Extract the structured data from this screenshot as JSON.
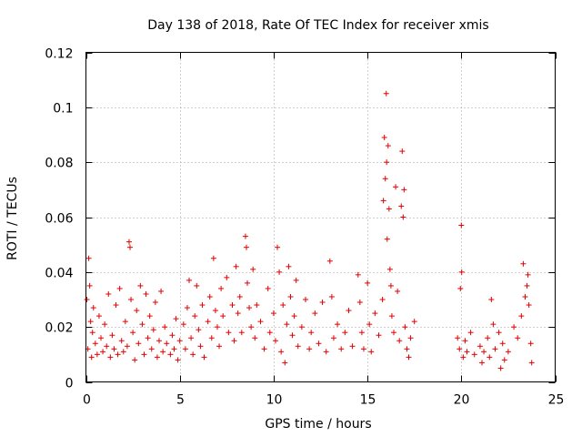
{
  "chart_data": {
    "type": "scatter",
    "title": "Day 138 of 2018, Rate Of TEC Index for receiver xmis",
    "xlabel": "GPS time / hours",
    "ylabel": "ROTI / TECUs",
    "xlim": [
      0,
      25
    ],
    "ylim": [
      0,
      0.12
    ],
    "x_ticks": [
      0,
      5,
      10,
      15,
      20,
      25
    ],
    "x_tick_labels": [
      "0",
      "5",
      "10",
      "15",
      "20",
      "25"
    ],
    "y_ticks": [
      0,
      0.02,
      0.04,
      0.06,
      0.08,
      0.1,
      0.12
    ],
    "y_tick_labels": [
      "0",
      "0.02",
      "0.04",
      "0.06",
      "0.08",
      "0.1",
      "0.12"
    ],
    "grid": true,
    "marker": "+",
    "color": "#e00000",
    "series": [
      {
        "name": "ROTI",
        "points": [
          [
            0.05,
            0.03
          ],
          [
            0.1,
            0.012
          ],
          [
            0.15,
            0.045
          ],
          [
            0.2,
            0.035
          ],
          [
            0.25,
            0.022
          ],
          [
            0.3,
            0.009
          ],
          [
            0.35,
            0.018
          ],
          [
            0.4,
            0.027
          ],
          [
            0.5,
            0.014
          ],
          [
            0.6,
            0.01
          ],
          [
            0.7,
            0.024
          ],
          [
            0.8,
            0.016
          ],
          [
            0.9,
            0.011
          ],
          [
            1.0,
            0.021
          ],
          [
            1.1,
            0.013
          ],
          [
            1.2,
            0.032
          ],
          [
            1.3,
            0.009
          ],
          [
            1.4,
            0.017
          ],
          [
            1.5,
            0.012
          ],
          [
            1.6,
            0.028
          ],
          [
            1.7,
            0.01
          ],
          [
            1.8,
            0.034
          ],
          [
            1.9,
            0.015
          ],
          [
            2.0,
            0.011
          ],
          [
            2.1,
            0.022
          ],
          [
            2.2,
            0.013
          ],
          [
            2.3,
            0.051
          ],
          [
            2.35,
            0.049
          ],
          [
            2.4,
            0.03
          ],
          [
            2.5,
            0.018
          ],
          [
            2.6,
            0.008
          ],
          [
            2.7,
            0.026
          ],
          [
            2.8,
            0.014
          ],
          [
            2.9,
            0.035
          ],
          [
            3.0,
            0.021
          ],
          [
            3.1,
            0.01
          ],
          [
            3.2,
            0.032
          ],
          [
            3.3,
            0.016
          ],
          [
            3.4,
            0.024
          ],
          [
            3.5,
            0.012
          ],
          [
            3.6,
            0.019
          ],
          [
            3.7,
            0.029
          ],
          [
            3.8,
            0.009
          ],
          [
            3.9,
            0.015
          ],
          [
            4.0,
            0.033
          ],
          [
            4.1,
            0.011
          ],
          [
            4.2,
            0.02
          ],
          [
            4.3,
            0.014
          ],
          [
            4.5,
            0.01
          ],
          [
            4.6,
            0.017
          ],
          [
            4.7,
            0.012
          ],
          [
            4.8,
            0.023
          ],
          [
            4.9,
            0.008
          ],
          [
            5.0,
            0.015
          ],
          [
            5.2,
            0.021
          ],
          [
            5.3,
            0.012
          ],
          [
            5.4,
            0.027
          ],
          [
            5.5,
            0.037
          ],
          [
            5.6,
            0.016
          ],
          [
            5.7,
            0.01
          ],
          [
            5.8,
            0.024
          ],
          [
            5.9,
            0.035
          ],
          [
            6.0,
            0.019
          ],
          [
            6.1,
            0.013
          ],
          [
            6.2,
            0.028
          ],
          [
            6.3,
            0.009
          ],
          [
            6.5,
            0.022
          ],
          [
            6.6,
            0.031
          ],
          [
            6.7,
            0.016
          ],
          [
            6.8,
            0.045
          ],
          [
            6.9,
            0.026
          ],
          [
            7.0,
            0.02
          ],
          [
            7.1,
            0.013
          ],
          [
            7.2,
            0.034
          ],
          [
            7.3,
            0.024
          ],
          [
            7.5,
            0.038
          ],
          [
            7.6,
            0.018
          ],
          [
            7.8,
            0.028
          ],
          [
            7.9,
            0.015
          ],
          [
            8.0,
            0.042
          ],
          [
            8.1,
            0.025
          ],
          [
            8.2,
            0.031
          ],
          [
            8.3,
            0.018
          ],
          [
            8.5,
            0.053
          ],
          [
            8.55,
            0.049
          ],
          [
            8.6,
            0.036
          ],
          [
            8.7,
            0.027
          ],
          [
            8.8,
            0.02
          ],
          [
            8.9,
            0.041
          ],
          [
            9.0,
            0.016
          ],
          [
            9.1,
            0.028
          ],
          [
            9.3,
            0.022
          ],
          [
            9.5,
            0.012
          ],
          [
            9.7,
            0.034
          ],
          [
            9.8,
            0.018
          ],
          [
            10.0,
            0.025
          ],
          [
            10.1,
            0.015
          ],
          [
            10.2,
            0.049
          ],
          [
            10.3,
            0.04
          ],
          [
            10.4,
            0.011
          ],
          [
            10.5,
            0.028
          ],
          [
            10.6,
            0.007
          ],
          [
            10.7,
            0.021
          ],
          [
            10.8,
            0.042
          ],
          [
            10.9,
            0.031
          ],
          [
            11.0,
            0.017
          ],
          [
            11.1,
            0.024
          ],
          [
            11.2,
            0.037
          ],
          [
            11.3,
            0.013
          ],
          [
            11.5,
            0.02
          ],
          [
            11.7,
            0.03
          ],
          [
            11.9,
            0.012
          ],
          [
            12.0,
            0.018
          ],
          [
            12.2,
            0.025
          ],
          [
            12.4,
            0.014
          ],
          [
            12.6,
            0.029
          ],
          [
            12.8,
            0.011
          ],
          [
            13.0,
            0.044
          ],
          [
            13.1,
            0.031
          ],
          [
            13.2,
            0.016
          ],
          [
            13.4,
            0.021
          ],
          [
            13.6,
            0.012
          ],
          [
            13.8,
            0.018
          ],
          [
            14.0,
            0.026
          ],
          [
            14.2,
            0.013
          ],
          [
            14.5,
            0.039
          ],
          [
            14.6,
            0.029
          ],
          [
            14.7,
            0.018
          ],
          [
            14.8,
            0.012
          ],
          [
            15.0,
            0.036
          ],
          [
            15.1,
            0.021
          ],
          [
            15.2,
            0.011
          ],
          [
            15.4,
            0.025
          ],
          [
            15.6,
            0.017
          ],
          [
            15.8,
            0.03
          ],
          [
            15.85,
            0.066
          ],
          [
            15.9,
            0.089
          ],
          [
            15.95,
            0.074
          ],
          [
            16.0,
            0.105
          ],
          [
            16.02,
            0.08
          ],
          [
            16.05,
            0.052
          ],
          [
            16.1,
            0.086
          ],
          [
            16.15,
            0.063
          ],
          [
            16.2,
            0.041
          ],
          [
            16.25,
            0.035
          ],
          [
            16.3,
            0.024
          ],
          [
            16.4,
            0.018
          ],
          [
            16.5,
            0.071
          ],
          [
            16.6,
            0.033
          ],
          [
            16.7,
            0.015
          ],
          [
            16.8,
            0.064
          ],
          [
            16.85,
            0.084
          ],
          [
            16.9,
            0.06
          ],
          [
            16.95,
            0.07
          ],
          [
            17.0,
            0.02
          ],
          [
            17.1,
            0.012
          ],
          [
            17.2,
            0.009
          ],
          [
            17.3,
            0.016
          ],
          [
            17.5,
            0.022
          ],
          [
            19.8,
            0.016
          ],
          [
            19.9,
            0.012
          ],
          [
            19.95,
            0.034
          ],
          [
            20.0,
            0.057
          ],
          [
            20.02,
            0.04
          ],
          [
            20.1,
            0.009
          ],
          [
            20.2,
            0.015
          ],
          [
            20.3,
            0.011
          ],
          [
            20.5,
            0.018
          ],
          [
            20.7,
            0.01
          ],
          [
            21.0,
            0.013
          ],
          [
            21.1,
            0.007
          ],
          [
            21.2,
            0.011
          ],
          [
            21.4,
            0.016
          ],
          [
            21.5,
            0.009
          ],
          [
            21.6,
            0.03
          ],
          [
            21.7,
            0.021
          ],
          [
            21.8,
            0.012
          ],
          [
            22.0,
            0.018
          ],
          [
            22.1,
            0.005
          ],
          [
            22.2,
            0.014
          ],
          [
            22.3,
            0.008
          ],
          [
            22.5,
            0.011
          ],
          [
            22.8,
            0.02
          ],
          [
            23.0,
            0.016
          ],
          [
            23.2,
            0.024
          ],
          [
            23.3,
            0.043
          ],
          [
            23.4,
            0.031
          ],
          [
            23.5,
            0.035
          ],
          [
            23.55,
            0.039
          ],
          [
            23.6,
            0.028
          ],
          [
            23.7,
            0.014
          ],
          [
            23.75,
            0.007
          ]
        ]
      }
    ]
  }
}
